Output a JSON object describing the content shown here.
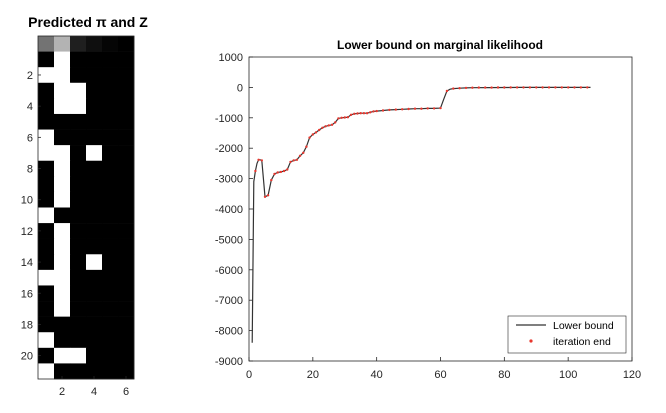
{
  "chart_data": [
    {
      "type": "heatmap",
      "title": "Predicted π and Z",
      "colormap": "grayscale",
      "n_cols": 6,
      "xticks": [
        2,
        4,
        6
      ],
      "yticks": [
        2,
        4,
        6,
        8,
        10,
        12,
        14,
        16,
        18,
        20
      ],
      "pi_row": [
        0.45,
        0.7,
        0.12,
        0.06,
        0.02,
        0.0
      ],
      "Z": [
        [
          0,
          1,
          0,
          0,
          0,
          0
        ],
        [
          1,
          1,
          0,
          0,
          0,
          0
        ],
        [
          0,
          1,
          1,
          0,
          0,
          0
        ],
        [
          0,
          1,
          1,
          0,
          0,
          0
        ],
        [
          0,
          0,
          0,
          0,
          0,
          0
        ],
        [
          1,
          0,
          0,
          0,
          0,
          0
        ],
        [
          1,
          1,
          0,
          1,
          0,
          0
        ],
        [
          0,
          1,
          0,
          0,
          0,
          0
        ],
        [
          0,
          1,
          0,
          0,
          0,
          0
        ],
        [
          0,
          1,
          0,
          0,
          0,
          0
        ],
        [
          1,
          0,
          0,
          0,
          0,
          0
        ],
        [
          0,
          1,
          0,
          0,
          0,
          0
        ],
        [
          0,
          1,
          0,
          0,
          0,
          0
        ],
        [
          0,
          1,
          0,
          1,
          0,
          0
        ],
        [
          1,
          1,
          0,
          0,
          0,
          0
        ],
        [
          0,
          1,
          0,
          0,
          0,
          0
        ],
        [
          0,
          1,
          0,
          0,
          0,
          0
        ],
        [
          0,
          0,
          0,
          0,
          0,
          0
        ],
        [
          1,
          0,
          0,
          0,
          0,
          0
        ],
        [
          0,
          1,
          1,
          0,
          0,
          0
        ],
        [
          1,
          0,
          0,
          0,
          0,
          0
        ]
      ]
    },
    {
      "type": "line",
      "title": "Lower bound on marginal likelihood",
      "xlabel": "",
      "ylabel": "",
      "xlim": [
        0,
        120
      ],
      "ylim": [
        -9000,
        1000
      ],
      "xticks": [
        0,
        20,
        40,
        60,
        80,
        100,
        120
      ],
      "yticks": [
        1000,
        0,
        -1000,
        -2000,
        -3000,
        -4000,
        -5000,
        -6000,
        -7000,
        -8000,
        -9000
      ],
      "grid": false,
      "legend_position": "bottom-right",
      "series": [
        {
          "name": "Lower bound",
          "style": "line",
          "color": "#333333",
          "x": [
            1,
            1.5,
            2,
            2.5,
            3,
            3.5,
            4,
            4.5,
            5,
            6,
            7,
            8,
            9,
            10,
            11,
            12,
            13,
            14,
            15,
            16,
            17,
            18,
            19,
            20,
            21,
            22,
            23,
            24,
            25,
            26,
            27,
            28,
            29,
            30,
            31,
            32,
            33,
            34,
            35,
            36,
            37,
            38,
            39,
            40,
            42,
            44,
            46,
            48,
            50,
            52,
            54,
            56,
            58,
            60,
            61,
            62,
            63,
            64,
            66,
            68,
            70,
            75,
            80,
            85,
            90,
            95,
            100,
            107
          ],
          "y": [
            -8400,
            -3100,
            -2750,
            -2500,
            -2380,
            -2380,
            -2400,
            -3000,
            -3600,
            -3550,
            -3050,
            -2850,
            -2800,
            -2780,
            -2750,
            -2700,
            -2450,
            -2400,
            -2380,
            -2250,
            -2150,
            -1950,
            -1650,
            -1550,
            -1480,
            -1400,
            -1330,
            -1280,
            -1250,
            -1230,
            -1150,
            -1020,
            -1000,
            -990,
            -980,
            -900,
            -870,
            -860,
            -850,
            -850,
            -850,
            -820,
            -790,
            -780,
            -760,
            -740,
            -730,
            -720,
            -710,
            -700,
            -700,
            -690,
            -690,
            -680,
            -390,
            -120,
            -60,
            -40,
            -25,
            -15,
            -10,
            -5,
            -2,
            0,
            0,
            0,
            0,
            0
          ]
        },
        {
          "name": "iteration end",
          "style": "markers",
          "marker": ".",
          "color": "#e8372e",
          "x": [
            2,
            3,
            4,
            5,
            6,
            7,
            8,
            9,
            10,
            11,
            12,
            13,
            14,
            15,
            16,
            17,
            18,
            19,
            20,
            21,
            22,
            23,
            24,
            25,
            26,
            27,
            28,
            29,
            30,
            31,
            32,
            33,
            34,
            35,
            36,
            37,
            38,
            39,
            40,
            42,
            44,
            46,
            48,
            50,
            52,
            54,
            56,
            58,
            60,
            62,
            64,
            66,
            68,
            70,
            72,
            74,
            76,
            78,
            80,
            82,
            84,
            86,
            88,
            90,
            92,
            94,
            96,
            98,
            100,
            102,
            104,
            106
          ],
          "y": [
            -2750,
            -2380,
            -2400,
            -3600,
            -3550,
            -3050,
            -2850,
            -2800,
            -2780,
            -2750,
            -2700,
            -2450,
            -2400,
            -2380,
            -2250,
            -2150,
            -1950,
            -1650,
            -1550,
            -1480,
            -1400,
            -1330,
            -1280,
            -1250,
            -1230,
            -1150,
            -1020,
            -1000,
            -990,
            -980,
            -900,
            -870,
            -860,
            -850,
            -850,
            -850,
            -820,
            -790,
            -780,
            -760,
            -740,
            -730,
            -720,
            -710,
            -700,
            -700,
            -690,
            -690,
            -680,
            -120,
            -40,
            -25,
            -15,
            -10,
            -8,
            -6,
            -5,
            -3,
            -2,
            -1,
            0,
            0,
            0,
            0,
            0,
            0,
            0,
            0,
            0,
            0,
            0,
            0
          ]
        }
      ]
    }
  ]
}
